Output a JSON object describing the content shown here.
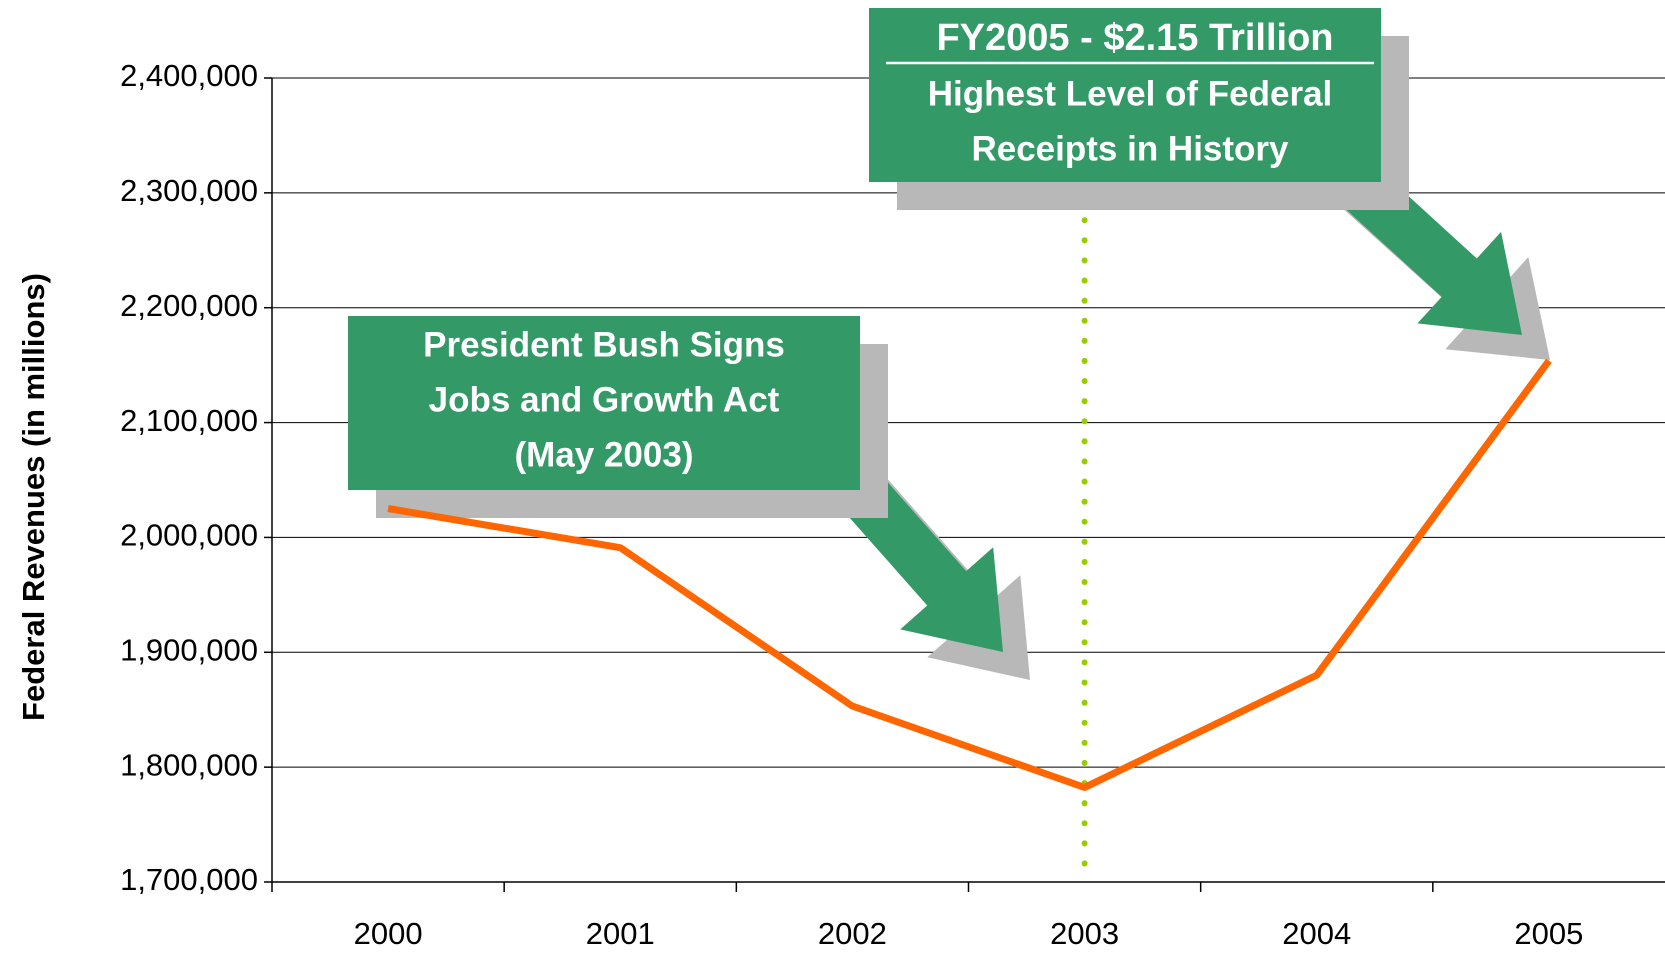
{
  "chart_data": {
    "type": "line",
    "y_label": "Federal Revenues (in millions)",
    "categories": [
      "2000",
      "2001",
      "2002",
      "2003",
      "2004",
      "2005"
    ],
    "series": [
      {
        "name": "Federal Revenues",
        "color": "#ff6600",
        "values": [
          2025191,
          1991082,
          1853136,
          1782314,
          1880114,
          2153859
        ]
      }
    ],
    "ylim": [
      1700000,
      2400000
    ],
    "yticks": [
      {
        "value": 1700000,
        "label": "1,700,000"
      },
      {
        "value": 1800000,
        "label": "1,800,000"
      },
      {
        "value": 1900000,
        "label": "1,900,000"
      },
      {
        "value": 2000000,
        "label": "2,000,000"
      },
      {
        "value": 2100000,
        "label": "2,100,000"
      },
      {
        "value": 2200000,
        "label": "2,200,000"
      },
      {
        "value": 2300000,
        "label": "2,300,000"
      },
      {
        "value": 2400000,
        "label": "2,400,000"
      }
    ],
    "grid": true,
    "reference_line": {
      "category": "2003",
      "color": "#99cc00"
    },
    "annotations": [
      {
        "lines": [
          "President Bush Signs",
          "Jobs and Growth Act",
          "(May 2003)"
        ]
      },
      {
        "title": "FY2005 - $2.15 Trillion",
        "lines": [
          "Highest Level of Federal",
          "Receipts in History"
        ]
      }
    ]
  }
}
